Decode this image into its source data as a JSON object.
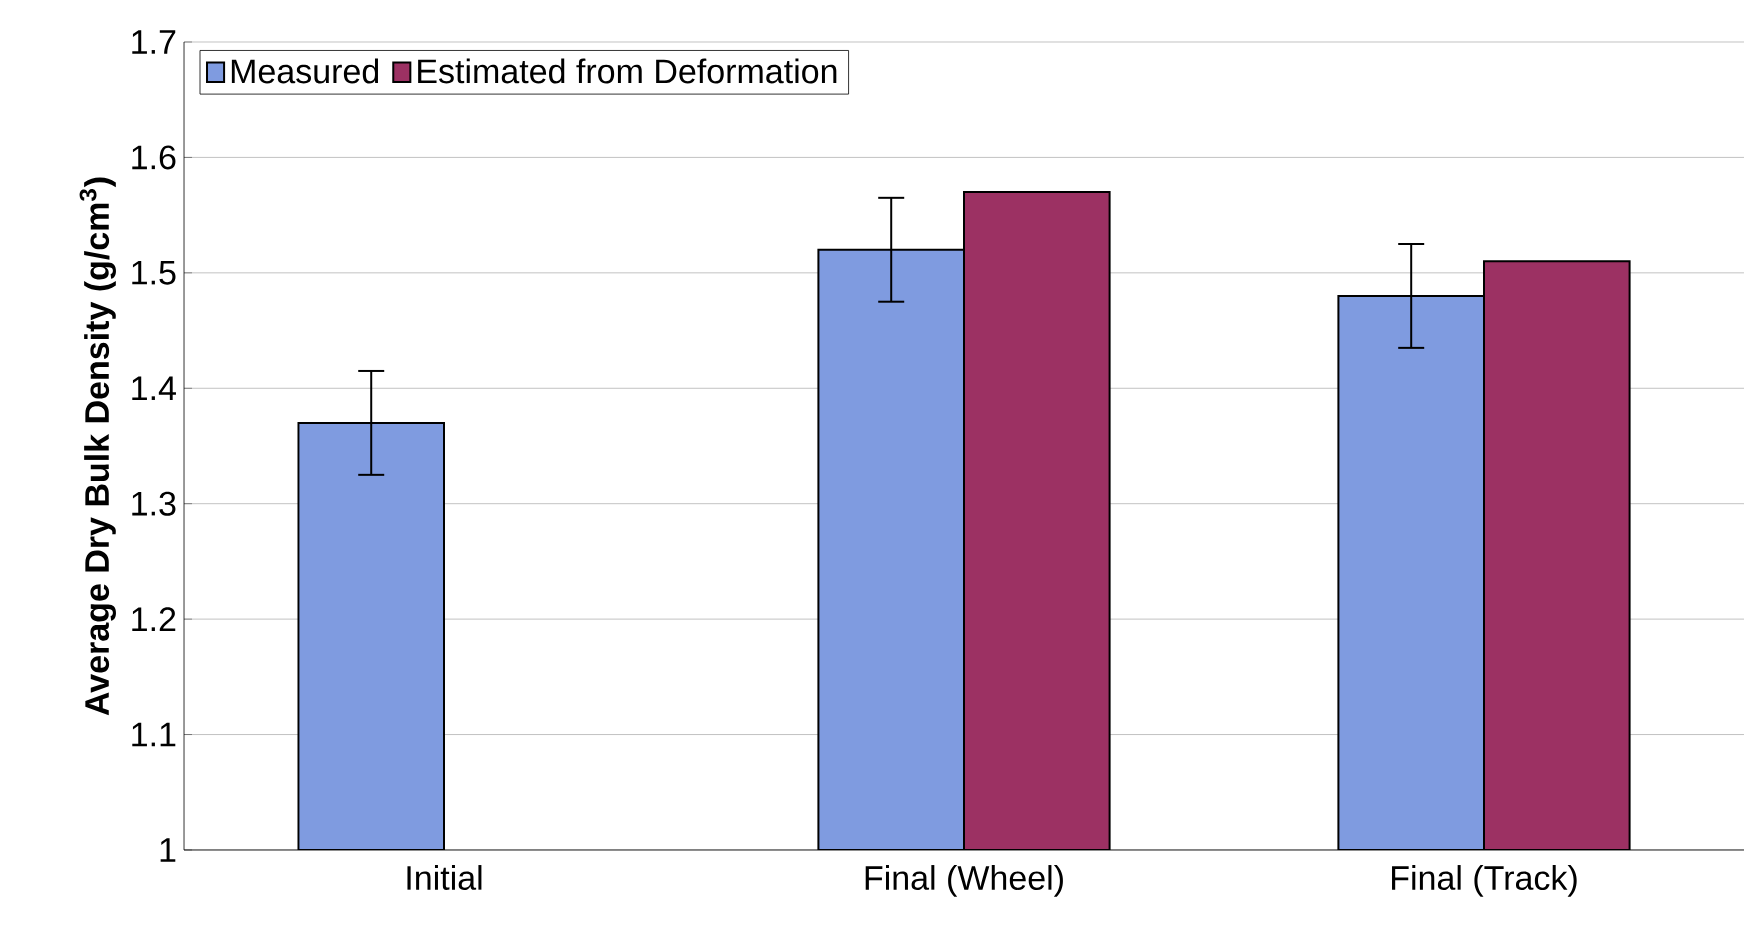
{
  "chart_data": {
    "type": "bar",
    "ylabel": "Average Dry Bulk Density (g/cm$^{3}$)",
    "categories": [
      "Initial",
      "Final (Wheel)",
      "Final (Track)"
    ],
    "series": [
      {
        "name": "Measured",
        "color": "#7f9be0",
        "values": [
          1.37,
          1.52,
          1.48
        ],
        "errors": [
          0.045,
          0.045,
          0.045
        ]
      },
      {
        "name": "Estimated from Deformation",
        "color": "#9c3163",
        "values": [
          null,
          1.57,
          1.51
        ]
      }
    ],
    "ylim": [
      1,
      1.7
    ],
    "yticks": [
      1,
      1.1,
      1.2,
      1.3,
      1.4,
      1.5,
      1.6,
      1.7
    ],
    "grid": "y",
    "legend": "top left"
  }
}
